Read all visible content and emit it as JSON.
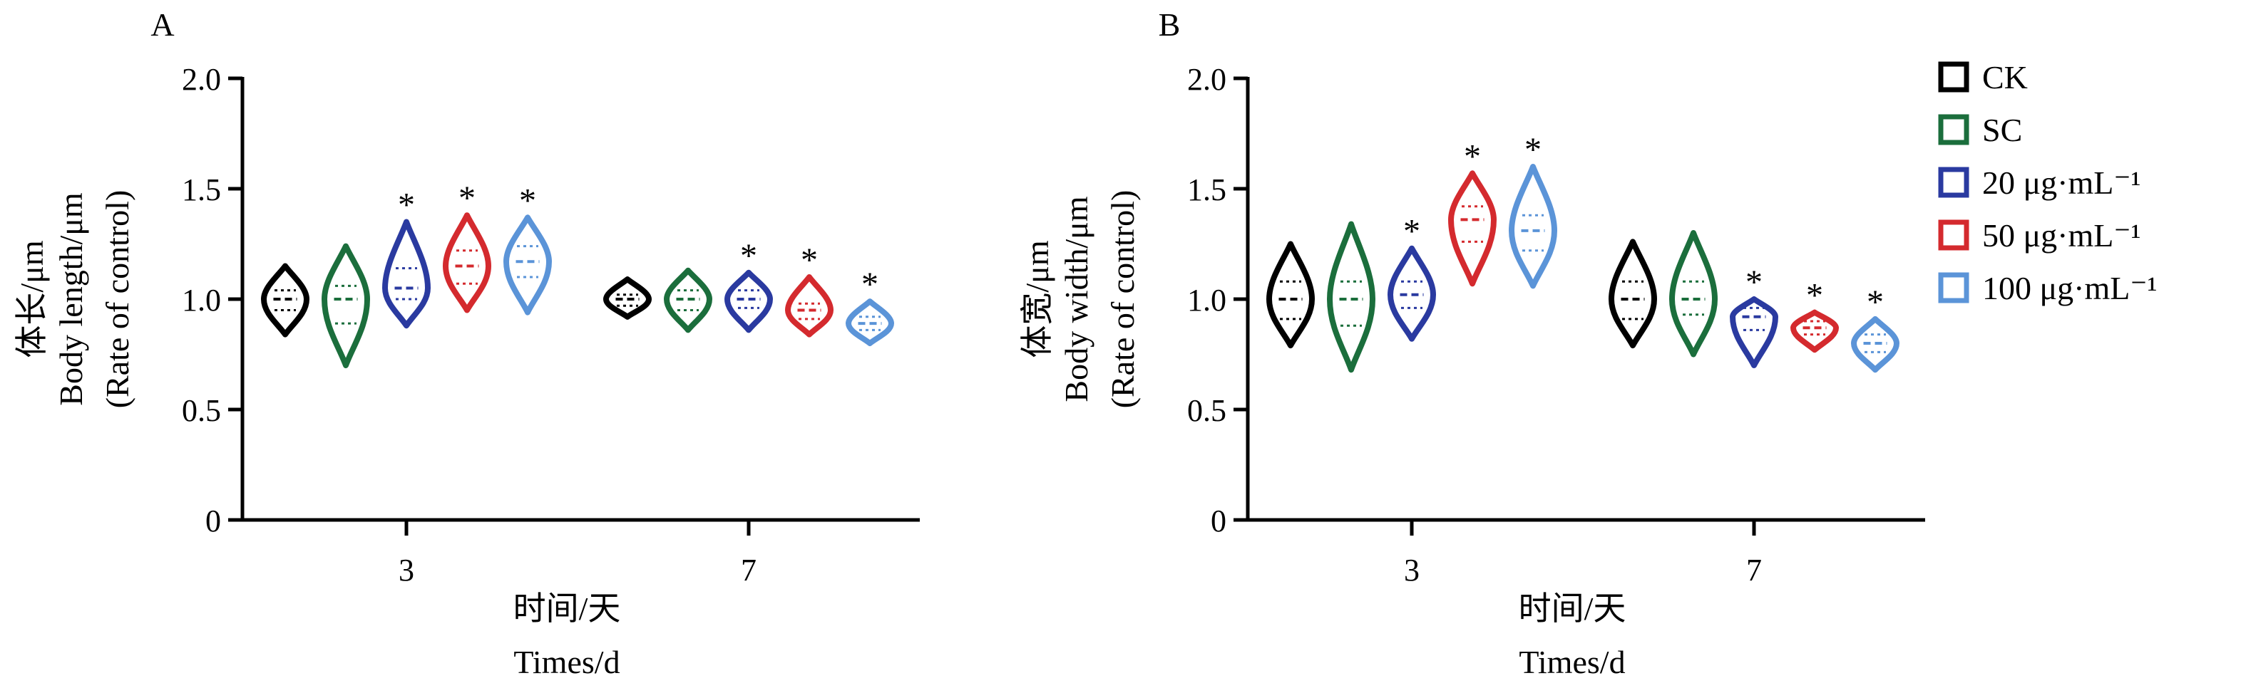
{
  "colors": {
    "CK": "#000000",
    "SC": "#1b6e3c",
    "20": "#2a3aa0",
    "50": "#d42a2e",
    "100": "#5b94d8",
    "axis": "#000000"
  },
  "legend": {
    "placement": "top-right",
    "items": [
      {
        "key": "CK",
        "label": "CK"
      },
      {
        "key": "SC",
        "label": "SC"
      },
      {
        "key": "20",
        "label": "20 μg·mL⁻¹"
      },
      {
        "key": "50",
        "label": "50 μg·mL⁻¹"
      },
      {
        "key": "100",
        "label": "100 μg·mL⁻¹"
      }
    ]
  },
  "chart_data": [
    {
      "type": "violin",
      "panel_label": "A",
      "ylabel_cn": "体长/μm",
      "ylabel_en": "Body length/μm",
      "ylabel_sub": "(Rate of control)",
      "xlabel_cn": "时间/天",
      "xlabel_en": "Times/d",
      "ylim": [
        0,
        2.0
      ],
      "yticks": [
        0,
        0.5,
        1.0,
        1.5,
        2.0
      ],
      "ytick_labels": [
        "0",
        "0.5",
        "1.0",
        "1.5",
        "2.0"
      ],
      "categories": [
        "3",
        "7"
      ],
      "series": [
        {
          "key": "CK",
          "name": "CK",
          "values": [
            {
              "min": 0.84,
              "max": 1.15,
              "median": 1.0,
              "q1": 0.95,
              "q3": 1.04,
              "sig": ""
            },
            {
              "min": 0.92,
              "max": 1.09,
              "median": 1.0,
              "q1": 0.97,
              "q3": 1.02,
              "sig": ""
            }
          ]
        },
        {
          "key": "SC",
          "name": "SC",
          "values": [
            {
              "min": 0.7,
              "max": 1.24,
              "median": 1.0,
              "q1": 0.89,
              "q3": 1.06,
              "sig": ""
            },
            {
              "min": 0.86,
              "max": 1.13,
              "median": 1.0,
              "q1": 0.95,
              "q3": 1.04,
              "sig": ""
            }
          ]
        },
        {
          "key": "20",
          "name": "20 μg·mL⁻¹",
          "values": [
            {
              "min": 0.88,
              "max": 1.35,
              "median": 1.05,
              "q1": 1.0,
              "q3": 1.14,
              "sig": "*"
            },
            {
              "min": 0.86,
              "max": 1.12,
              "median": 1.0,
              "q1": 0.96,
              "q3": 1.04,
              "sig": "*"
            }
          ]
        },
        {
          "key": "50",
          "name": "50 μg·mL⁻¹",
          "values": [
            {
              "min": 0.95,
              "max": 1.38,
              "median": 1.15,
              "q1": 1.07,
              "q3": 1.22,
              "sig": "*"
            },
            {
              "min": 0.84,
              "max": 1.1,
              "median": 0.95,
              "q1": 0.91,
              "q3": 0.98,
              "sig": "*"
            }
          ]
        },
        {
          "key": "100",
          "name": "100 μg·mL⁻¹",
          "values": [
            {
              "min": 0.94,
              "max": 1.37,
              "median": 1.17,
              "q1": 1.1,
              "q3": 1.24,
              "sig": "*"
            },
            {
              "min": 0.8,
              "max": 0.99,
              "median": 0.89,
              "q1": 0.86,
              "q3": 0.92,
              "sig": "*"
            }
          ]
        }
      ]
    },
    {
      "type": "violin",
      "panel_label": "B",
      "ylabel_cn": "体宽/μm",
      "ylabel_en": "Body width/μm",
      "ylabel_sub": "(Rate of control)",
      "xlabel_cn": "时间/天",
      "xlabel_en": "Times/d",
      "ylim": [
        0,
        2.0
      ],
      "yticks": [
        0,
        0.5,
        1.0,
        1.5,
        2.0
      ],
      "ytick_labels": [
        "0",
        "0.5",
        "1.0",
        "1.5",
        "2.0"
      ],
      "categories": [
        "3",
        "7"
      ],
      "series": [
        {
          "key": "CK",
          "name": "CK",
          "values": [
            {
              "min": 0.79,
              "max": 1.25,
              "median": 1.0,
              "q1": 0.91,
              "q3": 1.08,
              "sig": ""
            },
            {
              "min": 0.79,
              "max": 1.26,
              "median": 1.0,
              "q1": 0.91,
              "q3": 1.08,
              "sig": ""
            }
          ]
        },
        {
          "key": "SC",
          "name": "SC",
          "values": [
            {
              "min": 0.68,
              "max": 1.34,
              "median": 1.0,
              "q1": 0.88,
              "q3": 1.08,
              "sig": ""
            },
            {
              "min": 0.75,
              "max": 1.3,
              "median": 1.0,
              "q1": 0.93,
              "q3": 1.08,
              "sig": ""
            }
          ]
        },
        {
          "key": "20",
          "name": "20 μg·mL⁻¹",
          "values": [
            {
              "min": 0.82,
              "max": 1.23,
              "median": 1.02,
              "q1": 0.96,
              "q3": 1.08,
              "sig": "*"
            },
            {
              "min": 0.7,
              "max": 1.0,
              "median": 0.92,
              "q1": 0.86,
              "q3": 0.96,
              "sig": "*"
            }
          ]
        },
        {
          "key": "50",
          "name": "50 μg·mL⁻¹",
          "values": [
            {
              "min": 1.07,
              "max": 1.57,
              "median": 1.36,
              "q1": 1.26,
              "q3": 1.42,
              "sig": "*"
            },
            {
              "min": 0.77,
              "max": 0.94,
              "median": 0.87,
              "q1": 0.84,
              "q3": 0.9,
              "sig": "*"
            }
          ]
        },
        {
          "key": "100",
          "name": "100 μg·mL⁻¹",
          "values": [
            {
              "min": 1.06,
              "max": 1.6,
              "median": 1.31,
              "q1": 1.22,
              "q3": 1.38,
              "sig": "*"
            },
            {
              "min": 0.68,
              "max": 0.91,
              "median": 0.8,
              "q1": 0.76,
              "q3": 0.84,
              "sig": "*"
            }
          ]
        }
      ]
    }
  ]
}
